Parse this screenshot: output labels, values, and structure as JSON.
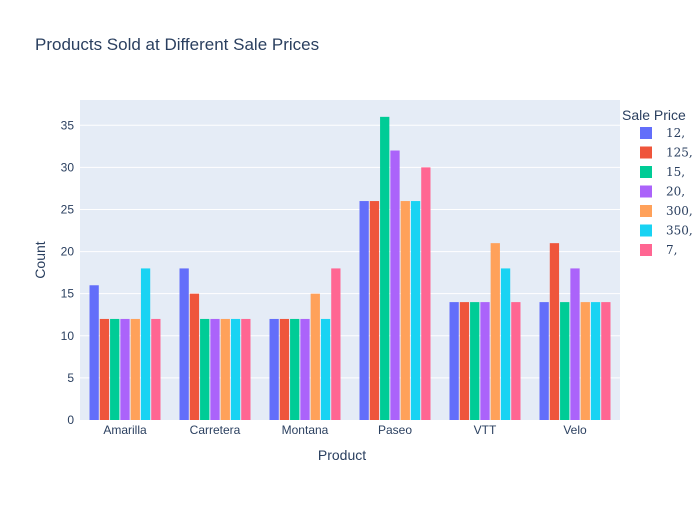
{
  "chart_data": {
    "type": "bar",
    "title": "Products Sold at Different Sale Prices",
    "xlabel": "Product",
    "ylabel": "Count",
    "legend_title": "Sale Price",
    "legend_position": "right",
    "grid": true,
    "ylim": [
      0,
      38
    ],
    "yticks": [
      0,
      5,
      10,
      15,
      20,
      25,
      30,
      35
    ],
    "categories": [
      "Amarilla",
      "Carretera",
      "Montana",
      "Paseo",
      "VTT",
      "Velo"
    ],
    "series": [
      {
        "name": "12,",
        "color": "#636efa",
        "values": [
          16,
          18,
          12,
          26,
          14,
          14
        ]
      },
      {
        "name": "125,",
        "color": "#ef553b",
        "values": [
          12,
          15,
          12,
          26,
          14,
          21
        ]
      },
      {
        "name": "15,",
        "color": "#00cc96",
        "values": [
          12,
          12,
          12,
          36,
          14,
          14
        ]
      },
      {
        "name": "20,",
        "color": "#ab63fa",
        "values": [
          12,
          12,
          12,
          32,
          14,
          18
        ]
      },
      {
        "name": "300,",
        "color": "#ffa15a",
        "values": [
          12,
          12,
          15,
          26,
          21,
          14
        ]
      },
      {
        "name": "350,",
        "color": "#19d3f3",
        "values": [
          18,
          12,
          12,
          26,
          18,
          14
        ]
      },
      {
        "name": "7,",
        "color": "#ff6692",
        "values": [
          12,
          12,
          18,
          30,
          14,
          14
        ]
      }
    ]
  }
}
